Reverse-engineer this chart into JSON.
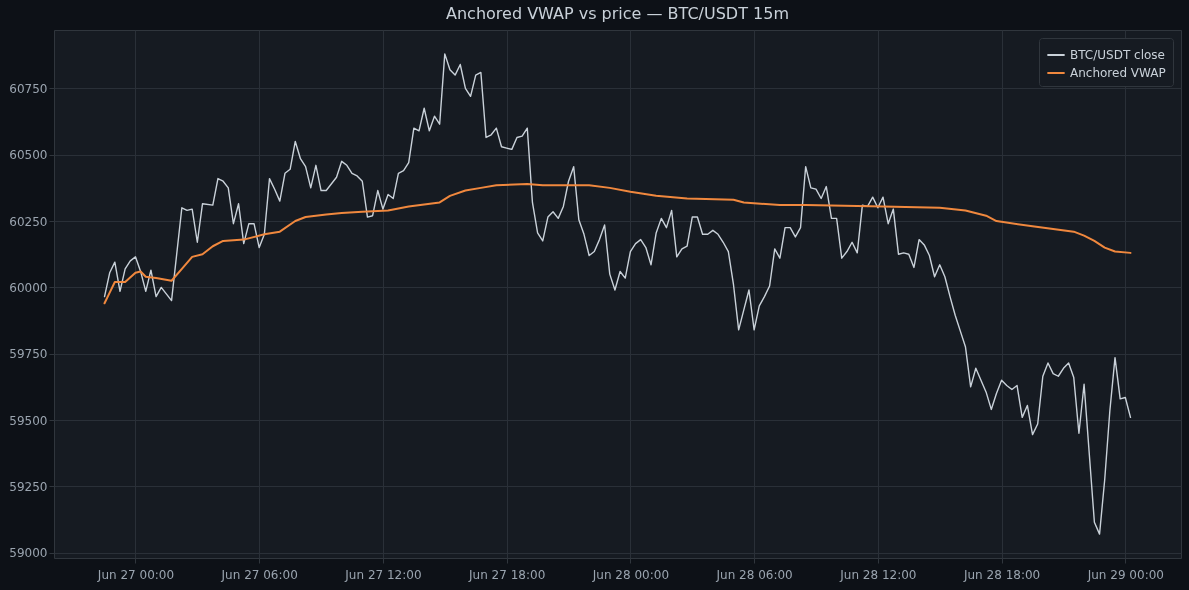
{
  "chart_data": {
    "type": "line",
    "title": "Anchored VWAP vs price — BTC/USDT 15m",
    "legend": "top right",
    "grid": true,
    "line_style": "solid",
    "marker": "none",
    "xlim": [
      "--06-26T20:03",
      "--06-29T02:42"
    ],
    "ylim": [
      58980,
      60970
    ],
    "xticks": [
      {
        "value": "--06-27T00:00",
        "label": "Jun 27 00:00"
      },
      {
        "value": "--06-27T06:00",
        "label": "Jun 27 06:00"
      },
      {
        "value": "--06-27T12:00",
        "label": "Jun 27 12:00"
      },
      {
        "value": "--06-27T18:00",
        "label": "Jun 27 18:00"
      },
      {
        "value": "--06-28T00:00",
        "label": "Jun 28 00:00"
      },
      {
        "value": "--06-28T06:00",
        "label": "Jun 28 06:00"
      },
      {
        "value": "--06-28T12:00",
        "label": "Jun 28 12:00"
      },
      {
        "value": "--06-28T18:00",
        "label": "Jun 28 18:00"
      },
      {
        "value": "--06-29T00:00",
        "label": "Jun 29 00:00"
      }
    ],
    "yticks": [
      59000,
      59250,
      59500,
      59750,
      60000,
      60250,
      60500,
      60750
    ],
    "series": [
      {
        "name": "BTC/USDT close",
        "color": "#c9d1d9",
        "x": [
          "--06-26T22:30",
          "--06-26T22:45",
          "--06-26T23:00",
          "--06-26T23:15",
          "--06-26T23:30",
          "--06-26T23:45",
          "--06-27T00:00",
          "--06-27T00:15",
          "--06-27T00:30",
          "--06-27T00:45",
          "--06-27T01:00",
          "--06-27T01:15",
          "--06-27T01:45",
          "--06-27T02:15",
          "--06-27T02:30",
          "--06-27T02:45",
          "--06-27T03:00",
          "--06-27T03:15",
          "--06-27T03:45",
          "--06-27T04:00",
          "--06-27T04:15",
          "--06-27T04:30",
          "--06-27T04:45",
          "--06-27T05:00",
          "--06-27T05:15",
          "--06-27T05:30",
          "--06-27T05:45",
          "--06-27T06:00",
          "--06-27T06:15",
          "--06-27T06:30",
          "--06-27T06:45",
          "--06-27T07:00",
          "--06-27T07:15",
          "--06-27T07:30",
          "--06-27T07:45",
          "--06-27T08:00",
          "--06-27T08:15",
          "--06-27T08:30",
          "--06-27T08:45",
          "--06-27T09:00",
          "--06-27T09:15",
          "--06-27T09:45",
          "--06-27T10:00",
          "--06-27T10:15",
          "--06-27T10:30",
          "--06-27T10:45",
          "--06-27T11:00",
          "--06-27T11:15",
          "--06-27T11:30",
          "--06-27T11:45",
          "--06-27T12:00",
          "--06-27T12:15",
          "--06-27T12:30",
          "--06-27T12:45",
          "--06-27T13:00",
          "--06-27T13:15",
          "--06-27T13:30",
          "--06-27T13:45",
          "--06-27T14:00",
          "--06-27T14:15",
          "--06-27T14:30",
          "--06-27T14:45",
          "--06-27T15:00",
          "--06-27T15:15",
          "--06-27T15:30",
          "--06-27T15:45",
          "--06-27T16:00",
          "--06-27T16:15",
          "--06-27T16:30",
          "--06-27T16:45",
          "--06-27T17:00",
          "--06-27T17:15",
          "--06-27T17:30",
          "--06-27T17:45",
          "--06-27T18:00",
          "--06-27T18:15",
          "--06-27T18:30",
          "--06-27T18:45",
          "--06-27T19:00",
          "--06-27T19:15",
          "--06-27T19:30",
          "--06-27T19:45",
          "--06-27T20:00",
          "--06-27T20:15",
          "--06-27T20:30",
          "--06-27T20:45",
          "--06-27T21:00",
          "--06-27T21:15",
          "--06-27T21:30",
          "--06-27T21:45",
          "--06-27T22:00",
          "--06-27T22:15",
          "--06-27T22:30",
          "--06-27T22:45",
          "--06-27T23:00",
          "--06-27T23:15",
          "--06-27T23:30",
          "--06-27T23:45",
          "--06-28T00:00",
          "--06-28T00:15",
          "--06-28T00:30",
          "--06-28T00:45",
          "--06-28T01:00",
          "--06-28T01:15",
          "--06-28T01:30",
          "--06-28T01:45",
          "--06-28T02:00",
          "--06-28T02:15",
          "--06-28T02:30",
          "--06-28T02:45",
          "--06-28T03:00",
          "--06-28T03:15",
          "--06-28T03:30",
          "--06-28T03:45",
          "--06-28T04:00",
          "--06-28T04:15",
          "--06-28T04:30",
          "--06-28T04:45",
          "--06-28T05:00",
          "--06-28T05:15",
          "--06-28T05:30",
          "--06-28T05:45",
          "--06-28T06:00",
          "--06-28T06:15",
          "--06-28T06:30",
          "--06-28T06:45",
          "--06-28T07:00",
          "--06-28T07:15",
          "--06-28T07:30",
          "--06-28T07:45",
          "--06-28T08:00",
          "--06-28T08:15",
          "--06-28T08:30",
          "--06-28T08:45",
          "--06-28T09:00",
          "--06-28T09:15",
          "--06-28T09:30",
          "--06-28T09:45",
          "--06-28T10:00",
          "--06-28T10:15",
          "--06-28T10:30",
          "--06-28T10:45",
          "--06-28T11:00",
          "--06-28T11:15",
          "--06-28T11:30",
          "--06-28T11:45",
          "--06-28T12:00",
          "--06-28T12:15",
          "--06-28T12:30",
          "--06-28T12:45",
          "--06-28T13:00",
          "--06-28T13:15",
          "--06-28T13:30",
          "--06-28T13:45",
          "--06-28T14:00",
          "--06-28T14:15",
          "--06-28T14:30",
          "--06-28T14:45",
          "--06-28T15:00",
          "--06-28T15:15",
          "--06-28T15:30",
          "--06-28T15:45",
          "--06-28T16:00",
          "--06-28T16:15",
          "--06-28T16:30",
          "--06-28T16:45",
          "--06-28T17:00",
          "--06-28T17:15",
          "--06-28T17:30",
          "--06-28T17:45",
          "--06-28T18:00",
          "--06-28T18:15",
          "--06-28T18:30",
          "--06-28T18:45",
          "--06-28T19:00",
          "--06-28T19:15",
          "--06-28T19:30",
          "--06-28T19:45",
          "--06-28T20:00",
          "--06-28T20:15",
          "--06-28T20:30",
          "--06-28T20:45",
          "--06-28T21:00",
          "--06-28T21:15",
          "--06-28T21:30",
          "--06-28T21:45",
          "--06-28T22:00",
          "--06-28T22:30",
          "--06-28T22:45",
          "--06-28T23:00",
          "--06-28T23:15",
          "--06-28T23:30",
          "--06-28T23:45",
          "--06-29T00:00",
          "--06-29T00:15"
        ],
        "values": [
          59965,
          60055,
          60095,
          59985,
          60070,
          60100,
          60115,
          60060,
          59985,
          60065,
          59965,
          60000,
          59950,
          60300,
          60290,
          60295,
          60170,
          60315,
          60310,
          60410,
          60400,
          60375,
          60240,
          60315,
          60165,
          60240,
          60240,
          60150,
          60200,
          60410,
          60370,
          60325,
          60430,
          60445,
          60550,
          60485,
          60455,
          60375,
          60460,
          60365,
          60365,
          60415,
          60475,
          60460,
          60430,
          60420,
          60400,
          60265,
          60270,
          60365,
          60295,
          60350,
          60335,
          60430,
          60440,
          60470,
          60600,
          60590,
          60675,
          60590,
          60645,
          60615,
          60880,
          60820,
          60800,
          60840,
          60750,
          60720,
          60800,
          60810,
          60565,
          60575,
          60600,
          60530,
          60525,
          60520,
          60565,
          60570,
          60600,
          60320,
          60205,
          60175,
          60265,
          60285,
          60260,
          60305,
          60400,
          60455,
          60255,
          60200,
          60120,
          60135,
          60180,
          60235,
          60050,
          59990,
          60060,
          60035,
          60135,
          60165,
          60180,
          60150,
          60085,
          60205,
          60260,
          60225,
          60290,
          60115,
          60145,
          60155,
          60265,
          60265,
          60200,
          60200,
          60215,
          60200,
          60170,
          60135,
          60010,
          59840,
          59915,
          59990,
          59840,
          59930,
          59965,
          60005,
          60145,
          60110,
          60225,
          60225,
          60190,
          60225,
          60455,
          60375,
          60370,
          60335,
          60380,
          60260,
          60260,
          60110,
          60135,
          60170,
          60130,
          60310,
          60305,
          60340,
          60300,
          60340,
          60240,
          60295,
          60125,
          60130,
          60125,
          60075,
          60180,
          60160,
          60120,
          60040,
          60085,
          60040,
          59965,
          59895,
          59835,
          59775,
          59625,
          59695,
          59650,
          59605,
          59540,
          59600,
          59650,
          59630,
          59615,
          59630,
          59510,
          59555,
          59445,
          59485,
          59665,
          59715,
          59675,
          59665,
          59695,
          59715,
          59660,
          59450,
          59635,
          59115,
          59070,
          59275,
          59535,
          59735,
          59580,
          59585,
          59510
        ]
      },
      {
        "name": "Anchored VWAP",
        "color": "#f0883e",
        "x": [
          "--06-26T22:30",
          "--06-26T22:45",
          "--06-26T23:00",
          "--06-26T23:30",
          "--06-27T00:00",
          "--06-27T00:15",
          "--06-27T00:30",
          "--06-27T01:00",
          "--06-27T01:45",
          "--06-27T02:15",
          "--06-27T02:45",
          "--06-27T03:15",
          "--06-27T03:45",
          "--06-27T04:15",
          "--06-27T05:15",
          "--06-27T06:15",
          "--06-27T07:00",
          "--06-27T07:45",
          "--06-27T08:15",
          "--06-27T09:15",
          "--06-27T10:00",
          "--06-27T11:00",
          "--06-27T12:15",
          "--06-27T13:15",
          "--06-27T14:45",
          "--06-27T15:15",
          "--06-27T16:00",
          "--06-27T16:45",
          "--06-27T17:30",
          "--06-27T19:00",
          "--06-27T19:45",
          "--06-27T22:00",
          "--06-27T23:00",
          "--06-28T00:00",
          "--06-28T01:15",
          "--06-28T02:45",
          "--06-28T05:00",
          "--06-28T05:30",
          "--06-28T07:15",
          "--06-28T08:30",
          "--06-28T12:15",
          "--06-28T15:00",
          "--06-28T16:15",
          "--06-28T17:15",
          "--06-28T17:45",
          "--06-28T19:30",
          "--06-28T20:30",
          "--06-28T21:30",
          "--06-28T22:00",
          "--06-28T22:30",
          "--06-28T23:00",
          "--06-28T23:30",
          "--06-29T00:15"
        ],
        "values": [
          59940,
          59980,
          60020,
          60020,
          60055,
          60060,
          60040,
          60035,
          60025,
          60070,
          60115,
          60125,
          60155,
          60175,
          60180,
          60200,
          60210,
          60250,
          60265,
          60275,
          60280,
          60285,
          60290,
          60305,
          60320,
          60345,
          60365,
          60375,
          60385,
          60390,
          60385,
          60385,
          60375,
          60360,
          60345,
          60335,
          60330,
          60320,
          60310,
          60310,
          60305,
          60300,
          60290,
          60270,
          60250,
          60230,
          60220,
          60210,
          60195,
          60175,
          60150,
          60135,
          60130
        ]
      }
    ]
  }
}
